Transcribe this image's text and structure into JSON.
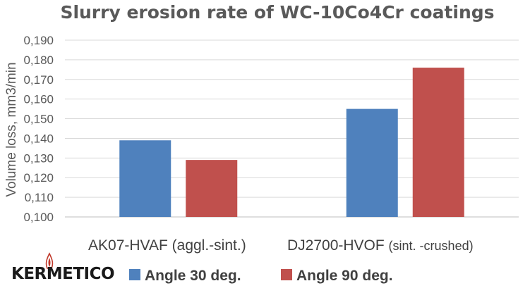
{
  "chart_data": {
    "type": "bar",
    "title": "Slurry erosion rate of WC-10Co4Cr coatings",
    "xlabel": "",
    "ylabel": "Volume loss, mm3/min",
    "categories": [
      {
        "main": "AK07-HVAF",
        "detail": "(aggl.-sint.)"
      },
      {
        "main": "DJ2700-HVOF",
        "detail": "(sint. -crushed)"
      }
    ],
    "series": [
      {
        "name": "Angle 30 deg.",
        "color": "#4f81bd",
        "values": [
          0.139,
          0.155
        ]
      },
      {
        "name": "Angle 90 deg.",
        "color": "#c0504d",
        "values": [
          0.129,
          0.176
        ]
      }
    ],
    "ylim": [
      0.1,
      0.19
    ],
    "yticks": [
      "0,100",
      "0,110",
      "0,120",
      "0,130",
      "0,140",
      "0,150",
      "0,160",
      "0,170",
      "0,180",
      "0,190"
    ],
    "grid": true,
    "legend_position": "bottom"
  },
  "logo": {
    "text": "KERMETICO",
    "icon": "flame-icon"
  }
}
